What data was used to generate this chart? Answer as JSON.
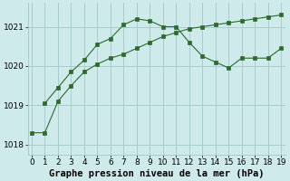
{
  "title": "Graphe pression niveau de la mer (hPa)",
  "line1_x": [
    0,
    1,
    2,
    3,
    4,
    5,
    6,
    7,
    8,
    9,
    10,
    11,
    12,
    13,
    14,
    15,
    16,
    17,
    18,
    19
  ],
  "line1_y": [
    1018.3,
    1018.3,
    1019.1,
    1019.5,
    1019.85,
    1020.05,
    1020.2,
    1020.3,
    1020.45,
    1020.6,
    1020.75,
    1020.85,
    1020.95,
    1021.0,
    1021.05,
    1021.1,
    1021.15,
    1021.2,
    1021.25,
    1021.3
  ],
  "line2_x": [
    1,
    2,
    3,
    4,
    5,
    6,
    7,
    8,
    9,
    10,
    11,
    12,
    13,
    14,
    15,
    16,
    17,
    18,
    19
  ],
  "line2_y": [
    1019.05,
    1019.45,
    1019.85,
    1020.15,
    1020.55,
    1020.7,
    1021.05,
    1021.2,
    1021.15,
    1021.0,
    1021.0,
    1020.6,
    1020.25,
    1020.1,
    1019.95,
    1020.2,
    1020.2,
    1020.2,
    1020.45
  ],
  "line_color": "#2d6a2d",
  "bg_color": "#ceeaea",
  "grid_color": "#a8cccc",
  "ylim": [
    1017.75,
    1021.6
  ],
  "yticks": [
    1018,
    1019,
    1020,
    1021
  ],
  "xlim": [
    -0.3,
    19.3
  ],
  "xticks": [
    0,
    1,
    2,
    3,
    4,
    5,
    6,
    7,
    8,
    9,
    10,
    11,
    12,
    13,
    14,
    15,
    16,
    17,
    18,
    19
  ],
  "title_fontsize": 7.5,
  "tick_fontsize": 6.5,
  "marker_size": 2.5
}
